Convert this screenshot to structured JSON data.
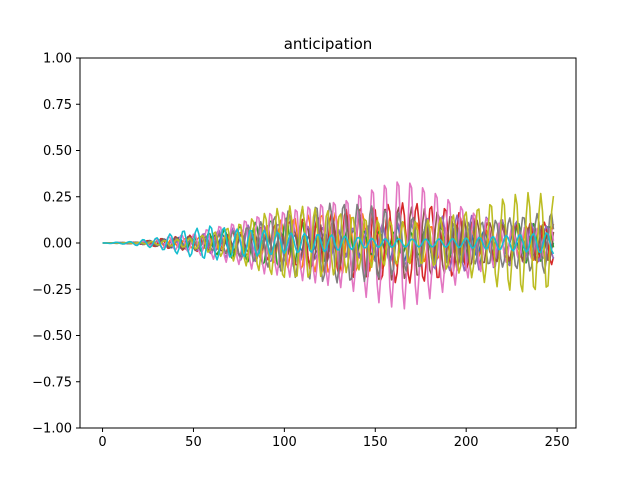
{
  "chart_data": {
    "type": "line",
    "title": "anticipation",
    "xlabel": "",
    "ylabel": "",
    "xlim": [
      -12.4,
      260.4
    ],
    "ylim": [
      -1.0,
      1.0
    ],
    "x_ticks": [
      0,
      50,
      100,
      150,
      200,
      250
    ],
    "x_tick_labels": [
      "0",
      "50",
      "100",
      "150",
      "200",
      "250"
    ],
    "y_ticks": [
      -1.0,
      -0.75,
      -0.5,
      -0.25,
      0.0,
      0.25,
      0.5,
      0.75,
      1.0
    ],
    "y_tick_labels": [
      "−1.00",
      "−0.75",
      "−0.50",
      "−0.25",
      "0.00",
      "0.25",
      "0.50",
      "0.75",
      "1.00"
    ],
    "grid": false,
    "legend": "none",
    "n_points": 249,
    "x_start": 0,
    "x_step": 1,
    "series": [
      {
        "color": "#1f77b4",
        "amplitude_at": [
          [
            0,
            0
          ],
          [
            20,
            0.005
          ],
          [
            50,
            0.04
          ],
          [
            100,
            0.09
          ],
          [
            150,
            0.1
          ],
          [
            200,
            0.1
          ],
          [
            248,
            0.08
          ]
        ],
        "period": 8.0,
        "phase": 0.0
      },
      {
        "color": "#ff7f0e",
        "amplitude_at": [
          [
            0,
            0
          ],
          [
            20,
            0.005
          ],
          [
            50,
            0.05
          ],
          [
            100,
            0.17
          ],
          [
            150,
            0.16
          ],
          [
            200,
            0.15
          ],
          [
            248,
            0.12
          ]
        ],
        "period": 7.5,
        "phase": 1.1
      },
      {
        "color": "#2ca02c",
        "amplitude_at": [
          [
            0,
            0
          ],
          [
            20,
            0.005
          ],
          [
            50,
            0.05
          ],
          [
            100,
            0.14
          ],
          [
            150,
            0.12
          ],
          [
            200,
            0.13
          ],
          [
            248,
            0.1
          ]
        ],
        "period": 8.5,
        "phase": 2.3
      },
      {
        "color": "#d62728",
        "amplitude_at": [
          [
            0,
            0
          ],
          [
            20,
            0.005
          ],
          [
            50,
            0.06
          ],
          [
            100,
            0.2
          ],
          [
            150,
            0.2
          ],
          [
            190,
            0.27
          ],
          [
            210,
            0.22
          ],
          [
            248,
            0.18
          ]
        ],
        "period": 7.8,
        "phase": 0.6
      },
      {
        "color": "#9467bd",
        "amplitude_at": [
          [
            0,
            0
          ],
          [
            20,
            0.005
          ],
          [
            50,
            0.04
          ],
          [
            100,
            0.15
          ],
          [
            150,
            0.17
          ],
          [
            200,
            0.15
          ],
          [
            248,
            0.14
          ]
        ],
        "period": 8.2,
        "phase": 3.0
      },
      {
        "color": "#8c564b",
        "amplitude_at": [
          [
            0,
            0
          ],
          [
            20,
            0.005
          ],
          [
            50,
            0.05
          ],
          [
            100,
            0.12
          ],
          [
            150,
            0.2
          ],
          [
            200,
            0.2
          ],
          [
            248,
            0.18
          ]
        ],
        "period": 7.2,
        "phase": 4.1
      },
      {
        "color": "#e377c2",
        "amplitude_at": [
          [
            0,
            0
          ],
          [
            20,
            0.008
          ],
          [
            50,
            0.06
          ],
          [
            75,
            0.2
          ],
          [
            90,
            0.34
          ],
          [
            110,
            0.36
          ],
          [
            135,
            0.3
          ],
          [
            165,
            0.36
          ],
          [
            190,
            0.3
          ],
          [
            220,
            0.2
          ],
          [
            248,
            0.15
          ]
        ],
        "period": 7.0,
        "phase": 0.3
      },
      {
        "color": "#7f7f7f",
        "amplitude_at": [
          [
            0,
            0
          ],
          [
            20,
            0.005
          ],
          [
            50,
            0.05
          ],
          [
            100,
            0.2
          ],
          [
            150,
            0.23
          ],
          [
            200,
            0.22
          ],
          [
            248,
            0.18
          ]
        ],
        "period": 7.6,
        "phase": 5.0
      },
      {
        "color": "#bcbd22",
        "amplitude_at": [
          [
            0,
            0
          ],
          [
            20,
            0.005
          ],
          [
            50,
            0.05
          ],
          [
            100,
            0.2
          ],
          [
            150,
            0.22
          ],
          [
            200,
            0.25
          ],
          [
            230,
            0.28
          ],
          [
            248,
            0.26
          ]
        ],
        "period": 6.9,
        "phase": 2.0
      },
      {
        "color": "#17becf",
        "amplitude_at": [
          [
            0,
            0
          ],
          [
            15,
            0.01
          ],
          [
            30,
            0.05
          ],
          [
            45,
            0.14
          ],
          [
            60,
            0.18
          ],
          [
            72,
            0.12
          ],
          [
            100,
            0.06
          ],
          [
            150,
            0.03
          ],
          [
            200,
            0.05
          ],
          [
            248,
            0.06
          ]
        ],
        "period": 7.4,
        "phase": 1.5
      }
    ]
  }
}
